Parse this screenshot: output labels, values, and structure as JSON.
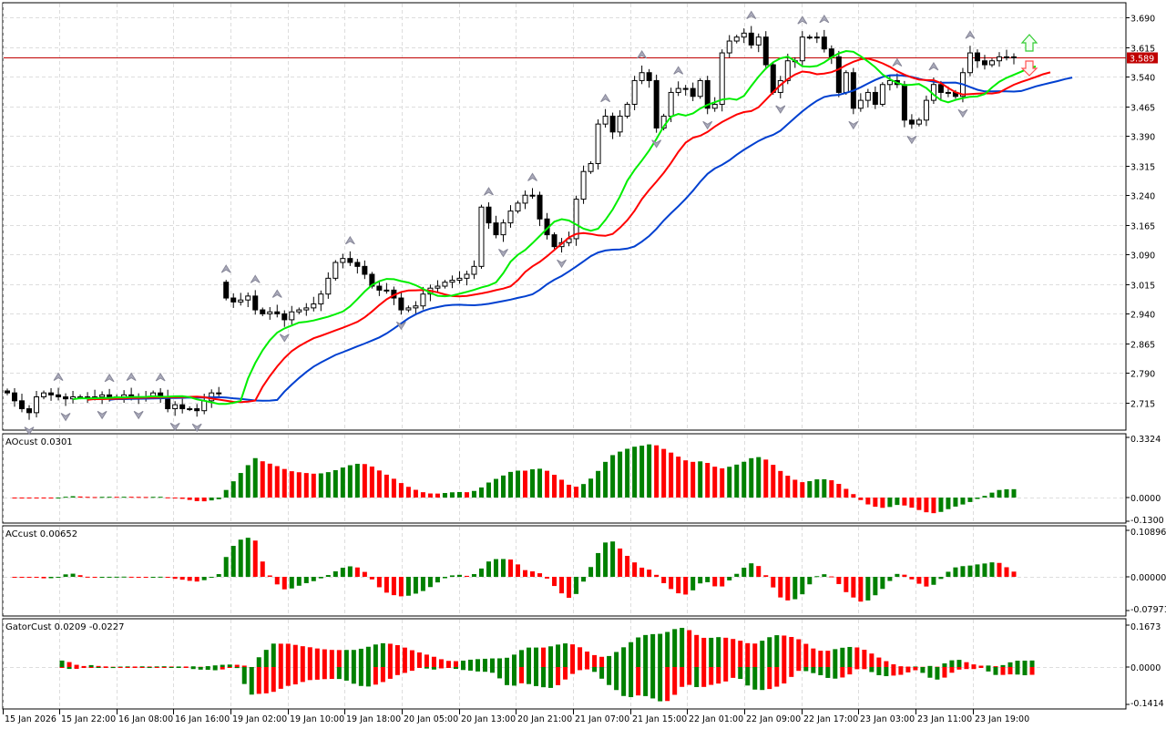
{
  "chart_data": {
    "type": "candlestick",
    "symbol_price_line": "3.589",
    "price_axis": {
      "ticks": [
        "3.690",
        "3.615",
        "3.540",
        "3.465",
        "3.390",
        "3.315",
        "3.240",
        "3.165",
        "3.090",
        "3.015",
        "2.940",
        "2.865",
        "2.790",
        "2.715"
      ],
      "range": [
        2.67,
        3.71
      ]
    },
    "time_axis": {
      "ticks": [
        "15 Jan 2026",
        "15 Jan 22:00",
        "16 Jan 08:00",
        "16 Jan 16:00",
        "19 Jan 02:00",
        "19 Jan 10:00",
        "19 Jan 18:00",
        "20 Jan 05:00",
        "20 Jan 13:00",
        "20 Jan 21:00",
        "21 Jan 07:00",
        "21 Jan 15:00",
        "22 Jan 01:00",
        "22 Jan 09:00",
        "22 Jan 17:00",
        "23 Jan 03:00",
        "23 Jan 11:00",
        "23 Jan 19:00"
      ]
    },
    "gap_open": {
      "index": 30,
      "open": 3.02
    },
    "close": [
      2.74,
      2.72,
      2.7,
      2.69,
      2.73,
      2.74,
      2.735,
      2.73,
      2.725,
      2.73,
      2.73,
      2.73,
      2.73,
      2.735,
      2.73,
      2.73,
      2.735,
      2.73,
      2.73,
      2.73,
      2.74,
      2.73,
      2.7,
      2.71,
      2.7,
      2.7,
      2.695,
      2.72,
      2.74,
      2.74,
      2.98,
      2.97,
      2.975,
      2.985,
      2.95,
      2.94,
      2.945,
      2.94,
      2.925,
      2.945,
      2.95,
      2.955,
      2.965,
      2.99,
      3.03,
      3.07,
      3.08,
      3.07,
      3.06,
      3.04,
      3.01,
      3.0,
      3.0,
      2.98,
      2.95,
      2.955,
      2.96,
      2.99,
      3.005,
      3.01,
      3.02,
      3.025,
      3.03,
      3.04,
      3.06,
      3.21,
      3.17,
      3.14,
      3.17,
      3.2,
      3.22,
      3.24,
      3.24,
      3.18,
      3.14,
      3.11,
      3.12,
      3.13,
      3.23,
      3.3,
      3.32,
      3.42,
      3.44,
      3.4,
      3.44,
      3.47,
      3.53,
      3.55,
      3.53,
      3.41,
      3.44,
      3.5,
      3.51,
      3.51,
      3.49,
      3.53,
      3.46,
      3.47,
      3.6,
      3.63,
      3.64,
      3.65,
      3.62,
      3.64,
      3.57,
      3.5,
      3.53,
      3.58,
      3.58,
      3.64,
      3.64,
      3.64,
      3.61,
      3.59,
      3.5,
      3.55,
      3.46,
      3.48,
      3.5,
      3.47,
      3.52,
      3.53,
      3.52,
      3.43,
      3.42,
      3.43,
      3.48,
      3.52,
      3.5,
      3.5,
      3.49,
      3.55,
      3.6,
      3.58,
      3.57,
      3.58,
      3.59,
      3.59,
      3.589
    ],
    "panes": [
      {
        "name": "AOcust",
        "label": "AOcust 0.0301",
        "axis": [
          "0.3324",
          "0.0000",
          "-0.1300"
        ],
        "range": [
          -0.13,
          0.3324
        ]
      },
      {
        "name": "ACcust",
        "label": "ACcust 0.00652",
        "axis": [
          "0.10896",
          "0.00000",
          "-0.07971"
        ],
        "range": [
          -0.07971,
          0.10896
        ]
      },
      {
        "name": "GatorCust",
        "label": "GatorCust 0.0209 -0.0227",
        "axis": [
          "0.1673",
          "0.0000",
          "-0.1414"
        ],
        "range": [
          -0.1414,
          0.1673
        ]
      }
    ],
    "colors": {
      "lips": "#00ee00",
      "teeth": "#ff0000",
      "jaw": "#0040d0",
      "up": "#008000",
      "down": "#ff0000",
      "price_line": "#c00000"
    },
    "signals": {
      "buy_arrow": "up-arrow",
      "sell_arrow": "down-arrow"
    }
  }
}
